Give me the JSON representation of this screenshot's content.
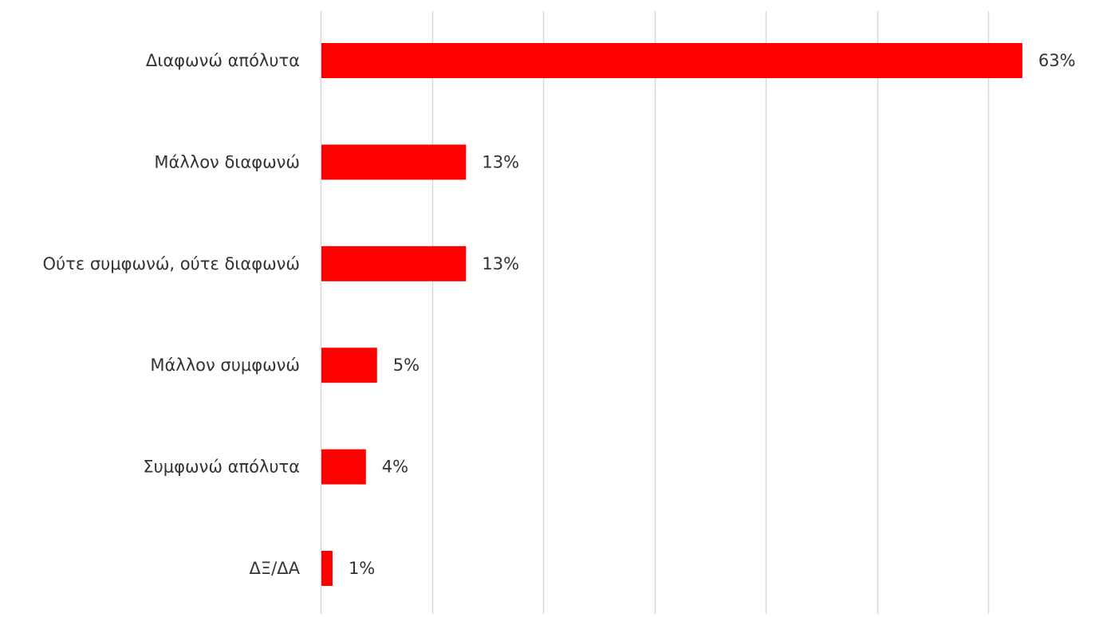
{
  "chart_data": {
    "type": "bar",
    "orientation": "horizontal",
    "categories": [
      "Διαφωνώ απόλυτα",
      "Μάλλον διαφωνώ",
      "Ούτε συμφωνώ, ούτε διαφωνώ",
      "Μάλλον συμφωνώ",
      "Συμφωνώ απόλυτα",
      "ΔΞ/ΔΑ"
    ],
    "values": [
      63,
      13,
      13,
      5,
      4,
      1
    ],
    "value_labels": [
      "63%",
      "13%",
      "13%",
      "5%",
      "4%",
      "1%"
    ],
    "unit": "%",
    "xlim": [
      0,
      60
    ],
    "x_ticks": [
      0,
      10,
      20,
      30,
      40,
      50,
      60
    ],
    "grid": true,
    "x_tick_labels_shown": false,
    "legend": false,
    "bar_color": "#ff0000",
    "grid_color": "#d9d9d9"
  }
}
